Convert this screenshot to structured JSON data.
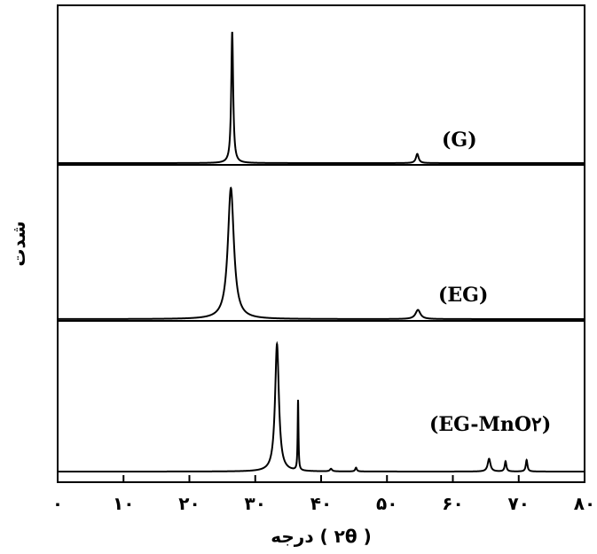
{
  "chart_data": {
    "type": "line",
    "xlabel": "درجه ( ۲θ )",
    "ylabel": "شدت",
    "xlim": [
      0,
      80
    ],
    "xticks": [
      {
        "value": 0,
        "label": "۰"
      },
      {
        "value": 10,
        "label": "۱۰"
      },
      {
        "value": 20,
        "label": "۲۰"
      },
      {
        "value": 30,
        "label": "۳۰"
      },
      {
        "value": 40,
        "label": "۴۰"
      },
      {
        "value": 50,
        "label": "۵۰"
      },
      {
        "value": 60,
        "label": "۶۰"
      },
      {
        "value": 70,
        "label": "۷۰"
      },
      {
        "value": 80,
        "label": "۸۰"
      }
    ],
    "grid": false,
    "legend": "none",
    "series": [
      {
        "name": "(G)",
        "color": "#000000",
        "peaks": [
          {
            "x": 26.5,
            "height": 1.0,
            "width": 0.35
          },
          {
            "x": 54.6,
            "height": 0.07,
            "width": 0.5
          }
        ]
      },
      {
        "name": "(EG)",
        "color": "#000000",
        "peaks": [
          {
            "x": 26.3,
            "height": 1.0,
            "width": 1.1
          },
          {
            "x": 54.7,
            "height": 0.07,
            "width": 0.9
          }
        ]
      },
      {
        "name": "(EG-MnO۲)",
        "color": "#000000",
        "peaks": [
          {
            "x": 33.3,
            "height": 1.0,
            "width": 0.7
          },
          {
            "x": 36.5,
            "height": 0.55,
            "width": 0.15
          },
          {
            "x": 41.5,
            "height": 0.02,
            "width": 0.4
          },
          {
            "x": 45.3,
            "height": 0.03,
            "width": 0.3
          },
          {
            "x": 65.5,
            "height": 0.1,
            "width": 0.5
          },
          {
            "x": 68.0,
            "height": 0.08,
            "width": 0.3
          },
          {
            "x": 71.2,
            "height": 0.09,
            "width": 0.3
          }
        ]
      }
    ]
  }
}
